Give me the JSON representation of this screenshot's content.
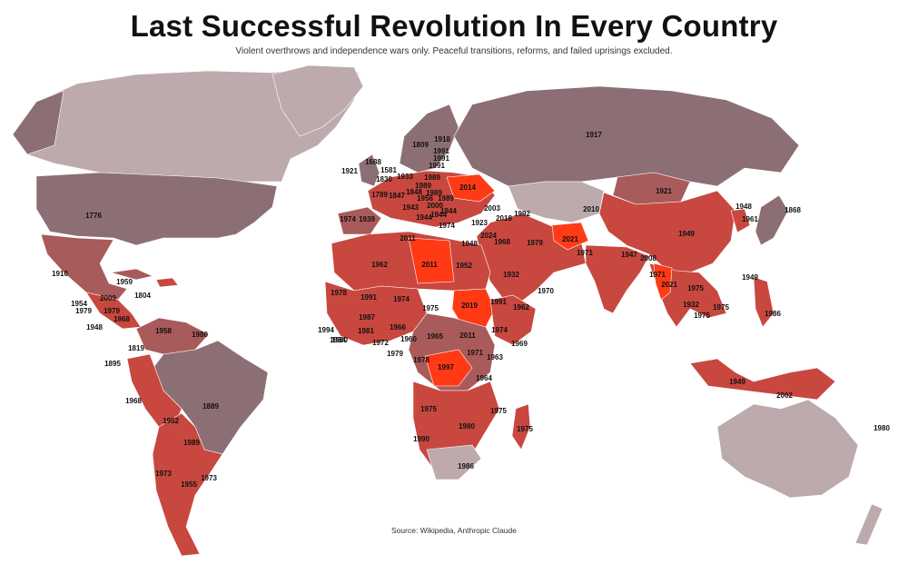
{
  "title": "Last Successful Revolution In Every Country",
  "subtitle": "Violent overthrows and independence wars only. Peaceful transitions, reforms, and failed uprisings excluded.",
  "source": "Source: Wikipedia, Anthropic Claude",
  "colors": {
    "nodata": "#bdaaad",
    "old": "#8c6f74",
    "mid": "#a95a5a",
    "recent": "#c8473f",
    "latest": "#ff3a14",
    "background": "#ffffff"
  },
  "labels": [
    {
      "id": "usa",
      "text": "1776"
    },
    {
      "id": "mexico",
      "text": "1910"
    },
    {
      "id": "cuba",
      "text": "1959"
    },
    {
      "id": "haiti",
      "text": "1804"
    },
    {
      "id": "honduras",
      "text": "2009"
    },
    {
      "id": "guatemala",
      "text": "1954"
    },
    {
      "id": "elsalvador",
      "text": "1979"
    },
    {
      "id": "nicaragua",
      "text": "1979"
    },
    {
      "id": "panama",
      "text": "1968"
    },
    {
      "id": "costarica",
      "text": "1948"
    },
    {
      "id": "venezuela",
      "text": "1958"
    },
    {
      "id": "guyana",
      "text": "1980"
    },
    {
      "id": "colombia",
      "text": "1819"
    },
    {
      "id": "ecuador",
      "text": "1895"
    },
    {
      "id": "peru",
      "text": "1968"
    },
    {
      "id": "brazil",
      "text": "1889"
    },
    {
      "id": "bolivia",
      "text": "1952"
    },
    {
      "id": "paraguay",
      "text": "1989"
    },
    {
      "id": "chile",
      "text": "1973"
    },
    {
      "id": "argentina",
      "text": "1955"
    },
    {
      "id": "uruguay",
      "text": "1973"
    },
    {
      "id": "ireland",
      "text": "1921"
    },
    {
      "id": "uk",
      "text": "1688"
    },
    {
      "id": "netherlands",
      "text": "1581"
    },
    {
      "id": "belgium",
      "text": "1830"
    },
    {
      "id": "france",
      "text": "1789"
    },
    {
      "id": "switzerland",
      "text": "1847"
    },
    {
      "id": "germany",
      "text": "1933"
    },
    {
      "id": "austria",
      "text": "1848"
    },
    {
      "id": "italy",
      "text": "1943"
    },
    {
      "id": "spain",
      "text": "1939"
    },
    {
      "id": "portugal",
      "text": "1974"
    },
    {
      "id": "sweden",
      "text": "1809"
    },
    {
      "id": "finland",
      "text": "1918"
    },
    {
      "id": "estonia",
      "text": "1991"
    },
    {
      "id": "latvia",
      "text": "1991"
    },
    {
      "id": "lithuania",
      "text": "1991"
    },
    {
      "id": "poland",
      "text": "1989"
    },
    {
      "id": "czech",
      "text": "1989"
    },
    {
      "id": "hungary",
      "text": "1956"
    },
    {
      "id": "slovakia",
      "text": "1989"
    },
    {
      "id": "romania",
      "text": "1989"
    },
    {
      "id": "ukraine",
      "text": "2014"
    },
    {
      "id": "serbia",
      "text": "2000"
    },
    {
      "id": "montenegro",
      "text": "1944"
    },
    {
      "id": "albania",
      "text": "1944"
    },
    {
      "id": "bulgaria",
      "text": "1944"
    },
    {
      "id": "greece",
      "text": "1974"
    },
    {
      "id": "turkey",
      "text": "1923"
    },
    {
      "id": "georgia",
      "text": "2003"
    },
    {
      "id": "armenia",
      "text": "2018"
    },
    {
      "id": "azerbaijan",
      "text": "1992"
    },
    {
      "id": "russia",
      "text": "1917"
    },
    {
      "id": "mongolia",
      "text": "1921"
    },
    {
      "id": "china",
      "text": "1949"
    },
    {
      "id": "northkorea",
      "text": "1948"
    },
    {
      "id": "southkorea",
      "text": "1961"
    },
    {
      "id": "japan",
      "text": "1868"
    },
    {
      "id": "kyrgyzstan",
      "text": "2010"
    },
    {
      "id": "iran",
      "text": "1979"
    },
    {
      "id": "afghanistan",
      "text": "2021"
    },
    {
      "id": "pakistan",
      "text": "1971"
    },
    {
      "id": "india",
      "text": "1947"
    },
    {
      "id": "nepal",
      "text": "2008"
    },
    {
      "id": "bangladesh",
      "text": "1971"
    },
    {
      "id": "myanmar",
      "text": "2021"
    },
    {
      "id": "laos",
      "text": "1975"
    },
    {
      "id": "thailand",
      "text": "1932"
    },
    {
      "id": "cambodia",
      "text": "1975"
    },
    {
      "id": "vietnam",
      "text": "1975"
    },
    {
      "id": "taiwan",
      "text": "1949"
    },
    {
      "id": "philippines",
      "text": "1986"
    },
    {
      "id": "indonesia",
      "text": "1949"
    },
    {
      "id": "easttimor",
      "text": "2002"
    },
    {
      "id": "vanuatu",
      "text": "1980"
    },
    {
      "id": "syria",
      "text": "2024"
    },
    {
      "id": "iraq",
      "text": "1968"
    },
    {
      "id": "israel",
      "text": "1948"
    },
    {
      "id": "saudi",
      "text": "1932"
    },
    {
      "id": "yemen",
      "text": "1970"
    },
    {
      "id": "tunisia",
      "text": "2011"
    },
    {
      "id": "libya",
      "text": "2011"
    },
    {
      "id": "egypt",
      "text": "1952"
    },
    {
      "id": "algeria",
      "text": "1962"
    },
    {
      "id": "mauritania",
      "text": "1978"
    },
    {
      "id": "mali",
      "text": "1991"
    },
    {
      "id": "niger",
      "text": "1974"
    },
    {
      "id": "chad",
      "text": "1975"
    },
    {
      "id": "sudan",
      "text": "2019"
    },
    {
      "id": "eritrea",
      "text": "1991"
    },
    {
      "id": "djibouti",
      "text": "1962"
    },
    {
      "id": "ethiopia",
      "text": "1974"
    },
    {
      "id": "somalia",
      "text": "1969"
    },
    {
      "id": "southsudan",
      "text": "2011"
    },
    {
      "id": "burkina",
      "text": "1987"
    },
    {
      "id": "guinea",
      "text": "1984"
    },
    {
      "id": "gambia",
      "text": "1994"
    },
    {
      "id": "ghana",
      "text": "1981"
    },
    {
      "id": "nigeria",
      "text": "1966"
    },
    {
      "id": "cameroon",
      "text": "1960"
    },
    {
      "id": "car",
      "text": "1965"
    },
    {
      "id": "liberia",
      "text": "1980"
    },
    {
      "id": "togo",
      "text": "1972"
    },
    {
      "id": "eqguinea",
      "text": "1979"
    },
    {
      "id": "congo",
      "text": "1978"
    },
    {
      "id": "drc",
      "text": "1997"
    },
    {
      "id": "uganda",
      "text": "1971"
    },
    {
      "id": "kenya",
      "text": "1963"
    },
    {
      "id": "tanzania",
      "text": "1964"
    },
    {
      "id": "angola",
      "text": "1975"
    },
    {
      "id": "zimbabwe",
      "text": "1980"
    },
    {
      "id": "mozambique",
      "text": "1975"
    },
    {
      "id": "madagascar",
      "text": "1975"
    },
    {
      "id": "namibia",
      "text": "1990"
    },
    {
      "id": "southafrica",
      "text": "1986"
    }
  ]
}
